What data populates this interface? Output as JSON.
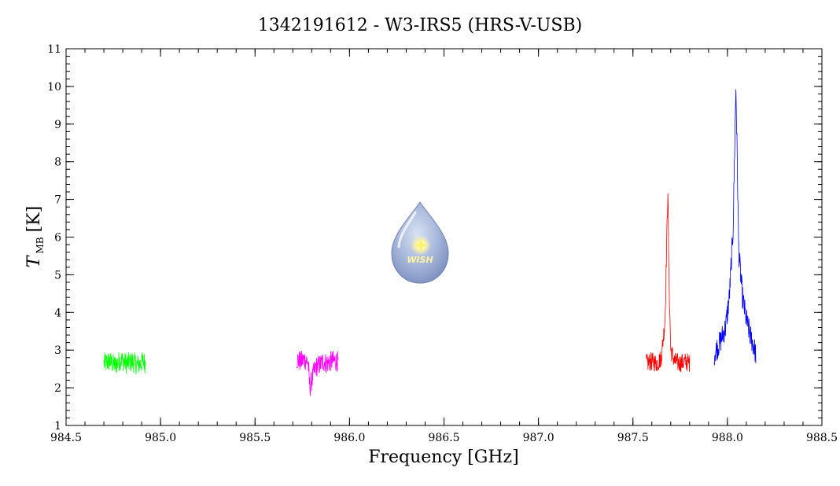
{
  "chart_data": {
    "type": "line",
    "title": "1342191612 - W3-IRS5 (HRS-V-USB)",
    "xlabel": "Frequency [GHz]",
    "ylabel": {
      "symbol": "T",
      "subscript": "MB",
      "unit": "[K]"
    },
    "xlim": [
      984.5,
      988.5
    ],
    "ylim": [
      1,
      11
    ],
    "xticks": [
      "984.5",
      "985.0",
      "985.5",
      "986.0",
      "986.5",
      "987.0",
      "987.5",
      "988.0",
      "988.5"
    ],
    "yticks": [
      "1",
      "2",
      "3",
      "4",
      "5",
      "6",
      "7",
      "8",
      "9",
      "10",
      "11"
    ],
    "grid": false,
    "logo": {
      "text": "WISH"
    },
    "series": [
      {
        "color": "#00ff00",
        "x": [
          984.7,
          984.73,
          984.76,
          984.79,
          984.82,
          984.85,
          984.88,
          984.91,
          984.92
        ],
        "y": [
          2.65,
          2.7,
          2.6,
          2.75,
          2.65,
          2.7,
          2.6,
          2.7,
          2.65
        ],
        "noise": 0.28
      },
      {
        "color": "#ff00ff",
        "x": [
          985.72,
          985.74,
          985.76,
          985.78,
          985.79,
          985.8,
          985.82,
          985.84,
          985.86,
          985.88,
          985.9,
          985.92,
          985.94
        ],
        "y": [
          2.75,
          2.7,
          2.75,
          2.7,
          2.0,
          2.2,
          2.55,
          2.6,
          2.7,
          2.65,
          2.7,
          2.72,
          2.7
        ],
        "noise": 0.28
      },
      {
        "color": "#ff0000",
        "x": [
          987.57,
          987.6,
          987.63,
          987.65,
          987.67,
          987.68,
          987.685,
          987.69,
          987.7,
          987.72,
          987.75,
          987.78,
          987.8
        ],
        "y": [
          2.65,
          2.7,
          2.65,
          2.8,
          3.8,
          6.2,
          7.3,
          5.0,
          3.0,
          2.7,
          2.65,
          2.7,
          2.65
        ],
        "noise": 0.25
      },
      {
        "color": "#0000ff",
        "x": [
          987.93,
          987.96,
          987.99,
          988.01,
          988.03,
          988.04,
          988.045,
          988.05,
          988.06,
          988.08,
          988.1,
          988.12,
          988.14,
          988.15
        ],
        "y": [
          2.9,
          3.2,
          3.6,
          4.4,
          6.2,
          8.8,
          10.0,
          8.6,
          5.6,
          4.4,
          3.8,
          3.4,
          3.1,
          2.9
        ],
        "noise": 0.32
      }
    ]
  }
}
